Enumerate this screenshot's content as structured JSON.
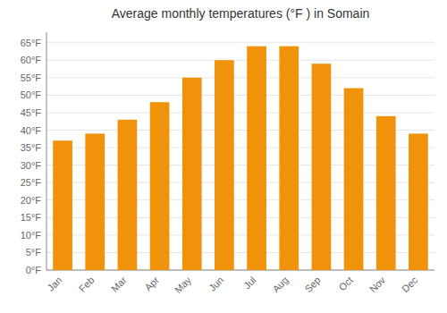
{
  "chart_data": {
    "type": "bar",
    "title": "Average monthly temperatures (°F ) in Somain",
    "categories": [
      "Jan",
      "Feb",
      "Mar",
      "Apr",
      "May",
      "Jun",
      "Jul",
      "Aug",
      "Sep",
      "Oct",
      "Nov",
      "Dec"
    ],
    "values": [
      37,
      39,
      43,
      48,
      55,
      60,
      64,
      64,
      59,
      52,
      44,
      39
    ],
    "color": "#F0920A",
    "ylim": [
      0,
      68
    ],
    "yticks": [
      {
        "value": 0,
        "label": "0°F"
      },
      {
        "value": 5,
        "label": "5°F"
      },
      {
        "value": 10,
        "label": "10°F"
      },
      {
        "value": 15,
        "label": "15°F"
      },
      {
        "value": 20,
        "label": "20°F"
      },
      {
        "value": 25,
        "label": "25°F"
      },
      {
        "value": 30,
        "label": "30°F"
      },
      {
        "value": 35,
        "label": "35°F"
      },
      {
        "value": 40,
        "label": "40°F"
      },
      {
        "value": 45,
        "label": "45°F"
      },
      {
        "value": 50,
        "label": "50°F"
      },
      {
        "value": 55,
        "label": "55°F"
      },
      {
        "value": 60,
        "label": "60°F"
      },
      {
        "value": 65,
        "label": "65°F"
      }
    ],
    "grid": true
  }
}
